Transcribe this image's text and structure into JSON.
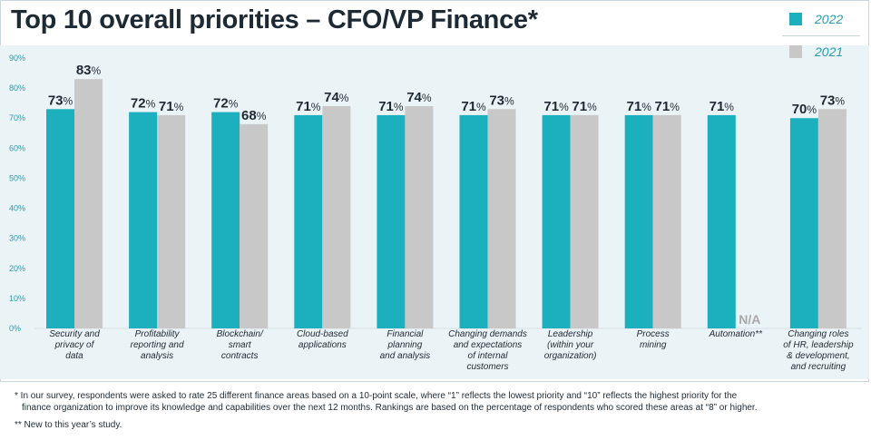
{
  "title": "Top 10 overall priorities – CFO/VP Finance*",
  "colors": {
    "series_2022": "#1cb0bf",
    "series_2021": "#c8c8c8",
    "axis_text": "#2a9cab",
    "title": "#1e2a33",
    "na_text": "#a9a9a9"
  },
  "legend": [
    {
      "label": "2022",
      "color": "#1cb0bf"
    },
    {
      "label": "2021",
      "color": "#c8c8c8"
    }
  ],
  "footnotes": {
    "line1": "* In our survey, respondents were asked to rate 25 different finance areas based on a 10-point scale, where “1” reflects the lowest priority and “10” reflects the highest priority for the",
    "line2": "finance organization to improve its knowledge and capabilities over the next 12 months. Rankings are based on the percentage of respondents who scored these areas at “8” or higher.",
    "line3": "** New to this year’s study."
  },
  "chart_data": {
    "type": "bar",
    "title": "Top 10 overall priorities – CFO/VP Finance*",
    "xlabel": "",
    "ylabel": "",
    "ylim": [
      0,
      90
    ],
    "yticks": [
      "0%",
      "10%",
      "20%",
      "30%",
      "40%",
      "50%",
      "60%",
      "70%",
      "80%",
      "90%"
    ],
    "ytick_values": [
      0,
      10,
      20,
      30,
      40,
      50,
      60,
      70,
      80,
      90
    ],
    "grid": false,
    "legend_position": "top-right",
    "categories": [
      [
        "Security and",
        "privacy of",
        "data"
      ],
      [
        "Profitability",
        "reporting and",
        "analysis"
      ],
      [
        "Blockchain/",
        "smart",
        "contracts"
      ],
      [
        "Cloud-based",
        "applications"
      ],
      [
        "Financial",
        "planning",
        "and analysis"
      ],
      [
        "Changing demands",
        "and expectations",
        "of internal",
        "customers"
      ],
      [
        "Leadership",
        "(within your",
        "organization)"
      ],
      [
        "Process",
        "mining"
      ],
      [
        "Automation**"
      ],
      [
        "Changing roles",
        "of HR, leadership",
        "& development,",
        "and recruiting"
      ]
    ],
    "series": [
      {
        "name": "2022",
        "values": [
          73,
          72,
          72,
          71,
          71,
          71,
          71,
          71,
          71,
          70
        ],
        "labels": [
          "73%",
          "72%",
          "72%",
          "71%",
          "71%",
          "71%",
          "71%",
          "71%",
          "71%",
          "70%"
        ]
      },
      {
        "name": "2021",
        "values": [
          83,
          71,
          68,
          74,
          74,
          73,
          71,
          71,
          null,
          73
        ],
        "labels": [
          "83%",
          "71%",
          "68%",
          "74%",
          "74%",
          "73%",
          "71%",
          "71%",
          "N/A",
          "73%"
        ]
      }
    ]
  }
}
